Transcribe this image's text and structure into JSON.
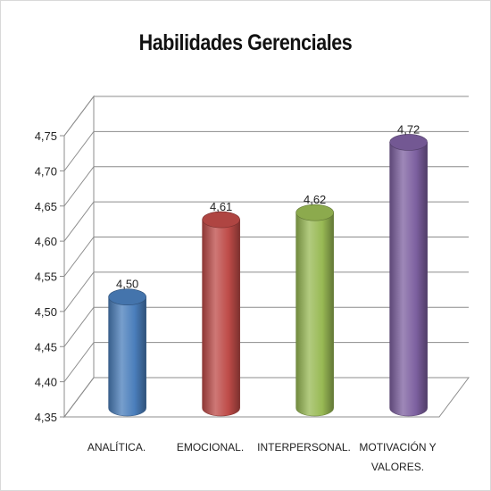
{
  "chart_data": {
    "type": "bar",
    "title": "Habilidades Gerenciales",
    "categories": [
      [
        "ANALÍTICA."
      ],
      [
        "EMOCIONAL."
      ],
      [
        "INTERPERSONAL."
      ],
      [
        "MOTIVACIÓN Y",
        "VALORES."
      ]
    ],
    "values": [
      4.5,
      4.61,
      4.62,
      4.72
    ],
    "value_labels": [
      "4,50",
      "4,61",
      "4,62",
      "4,72"
    ],
    "colors": [
      "#4a7ebb",
      "#be4b48",
      "#98b954",
      "#7d60a0"
    ],
    "ylim": [
      4.35,
      4.75
    ],
    "yticks": [
      4.35,
      4.4,
      4.45,
      4.5,
      4.55,
      4.6,
      4.65,
      4.7,
      4.75
    ],
    "ytick_labels": [
      "4,35",
      "4,40",
      "4,45",
      "4,50",
      "4,55",
      "4,60",
      "4,65",
      "4,70",
      "4,75"
    ],
    "grid": true,
    "legend": "none"
  }
}
